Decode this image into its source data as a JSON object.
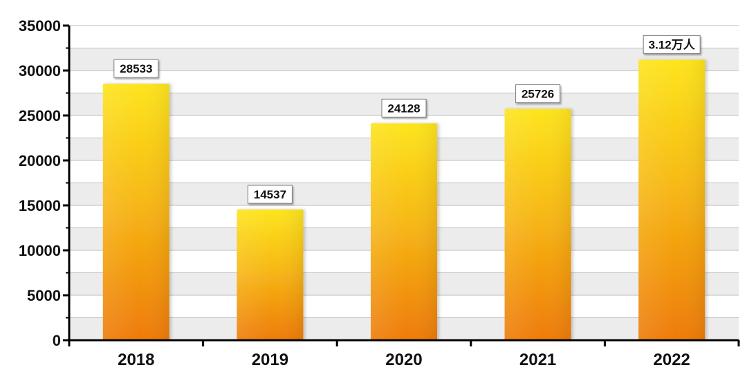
{
  "chart_data": {
    "type": "bar",
    "categories": [
      "2018",
      "2019",
      "2020",
      "2021",
      "2022"
    ],
    "values": [
      28533,
      14537,
      24128,
      25726,
      31200
    ],
    "data_labels": [
      "28533",
      "14537",
      "24128",
      "25726",
      "3.12万人"
    ],
    "ylim": [
      0,
      35000
    ],
    "yticks": [
      0,
      5000,
      10000,
      15000,
      20000,
      25000,
      30000,
      35000
    ],
    "ytick_labels": [
      "0",
      "5000",
      "10000",
      "15000",
      "20000",
      "25000",
      "30000",
      "35000"
    ],
    "title": "",
    "xlabel": "",
    "ylabel": "",
    "grid": true,
    "colors": {
      "bar_top": "#fde41c",
      "bar_bottom": "#ee7b06",
      "band_light": "#ffffff",
      "band_dark": "#ececec",
      "gridline": "#bdbdbd",
      "axis": "#000000"
    }
  }
}
